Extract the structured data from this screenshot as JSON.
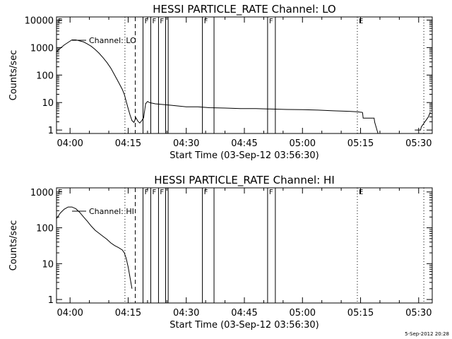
{
  "chart_data": [
    {
      "type": "line",
      "title": "HESSI PARTICLE_RATE Channel: LO",
      "ylabel": "Counts/sec",
      "xlabel": "Start Time (03-Sep-12 03:56:30)",
      "x_ticks": [
        "04:00",
        "04:15",
        "04:30",
        "04:45",
        "05:00",
        "05:15",
        "05:30"
      ],
      "y_ticks": [
        "1",
        "10",
        "100",
        "1000",
        "10000"
      ],
      "y_scale": "log",
      "xlim": [
        "03:56:30",
        "05:33:30"
      ],
      "ylim": [
        0.75,
        13000
      ],
      "legend": {
        "label": "Channel: LO",
        "placement": "top-left"
      },
      "series": [
        {
          "name": "Channel: LO",
          "segments": [
            {
              "x": [
                "03:56:30",
                "03:57:30",
                "03:58:30",
                "03:59:30",
                "04:00:30",
                "04:01:30",
                "04:02:30",
                "04:03:30",
                "04:04:30",
                "04:05:30",
                "04:06:30",
                "04:07:30",
                "04:08:30",
                "04:09:30",
                "04:10:30",
                "04:11:30",
                "04:12:30",
                "04:13:30",
                "04:14:00",
                "04:14:30",
                "04:15:00",
                "04:15:30",
                "04:16:00",
                "04:16:30",
                "04:17:00",
                "04:17:30",
                "04:18:00",
                "04:18:30",
                "04:19:00",
                "04:19:30",
                "04:20:00",
                "04:20:30"
              ],
              "y": [
                700,
                950,
                1250,
                1550,
                1900,
                1900,
                1750,
                1600,
                1350,
                1100,
                850,
                620,
                430,
                290,
                180,
                100,
                55,
                30,
                20,
                11,
                6,
                3.5,
                2.2,
                1.9,
                2.8,
                2.1,
                1.8,
                2.2,
                2.8,
                9,
                11,
                10
              ]
            },
            {
              "x": [
                "04:20:30",
                "04:22:00",
                "04:24:00",
                "04:26:00",
                "04:28:00",
                "04:30:00",
                "04:33:00",
                "04:36:00",
                "04:40:00",
                "04:44:00",
                "04:48:00",
                "04:52:00",
                "04:56:00",
                "05:00:00",
                "05:04:00",
                "05:08:00",
                "05:12:00",
                "05:14:00",
                "05:15:30"
              ],
              "y": [
                10,
                9,
                8.5,
                8,
                7.5,
                7,
                7,
                6.5,
                6.3,
                6,
                6,
                5.8,
                5.6,
                5.5,
                5.3,
                5,
                4.8,
                4.6,
                4.4
              ]
            },
            {
              "x": [
                "05:15:30",
                "05:15:40",
                "05:18:30",
                "05:18:40",
                "05:19:30"
              ],
              "y": [
                4.4,
                2.7,
                2.7,
                1.9,
                0.6
              ]
            },
            {
              "x": [
                "05:29:00",
                "05:30:30",
                "05:30:40",
                "05:32:30",
                "05:33:00"
              ],
              "y": [
                1,
                1,
                1.3,
                3,
                4.5
              ]
            }
          ]
        }
      ],
      "flags": [
        {
          "label": "E",
          "x": "03:56:30",
          "style": "dotted"
        },
        {
          "label": "",
          "x": "04:14:10",
          "style": "dotted"
        },
        {
          "label": "",
          "x": "04:16:50",
          "style": "dashed"
        },
        {
          "label": "F",
          "x": "04:18:50",
          "style": "solid"
        },
        {
          "label": "F",
          "x": "04:20:50",
          "style": "solid"
        },
        {
          "label": "F",
          "x": "04:22:50",
          "style": "solid"
        },
        {
          "label": "",
          "x": "04:24:40",
          "style": "solid"
        },
        {
          "label": "",
          "x": "04:25:20",
          "style": "solid"
        },
        {
          "label": "F",
          "x": "04:34:10",
          "style": "solid"
        },
        {
          "label": "",
          "x": "04:37:10",
          "style": "solid"
        },
        {
          "label": "F",
          "x": "04:51:00",
          "style": "solid"
        },
        {
          "label": "",
          "x": "04:53:00",
          "style": "solid"
        },
        {
          "label": "E",
          "x": "05:14:10",
          "style": "dotted"
        },
        {
          "label": "",
          "x": "05:31:20",
          "style": "dotted"
        }
      ]
    },
    {
      "type": "line",
      "title": "HESSI PARTICLE_RATE Channel: HI",
      "ylabel": "Counts/sec",
      "xlabel": "Start Time (03-Sep-12 03:56:30)",
      "x_ticks": [
        "04:00",
        "04:15",
        "04:30",
        "04:45",
        "05:00",
        "05:15",
        "05:30"
      ],
      "y_ticks": [
        "1",
        "10",
        "100",
        "1000"
      ],
      "y_scale": "log",
      "xlim": [
        "03:56:30",
        "05:33:30"
      ],
      "ylim": [
        0.8,
        1300
      ],
      "legend": {
        "label": "Channel: HI",
        "placement": "top-left"
      },
      "series": [
        {
          "name": "Channel: HI",
          "segments": [
            {
              "x": [
                "03:56:30",
                "03:57:30",
                "03:58:30",
                "03:59:30",
                "04:00:30",
                "04:01:30",
                "04:02:30",
                "04:03:30",
                "04:04:30",
                "04:05:30",
                "04:06:30",
                "04:07:30",
                "04:08:30",
                "04:09:30",
                "04:10:30",
                "04:11:30",
                "04:12:30",
                "04:13:30",
                "04:14:00",
                "04:14:30",
                "04:15:00",
                "04:15:30",
                "04:16:00"
              ],
              "y": [
                180,
                260,
                330,
                380,
                380,
                340,
                270,
                200,
                150,
                110,
                85,
                70,
                58,
                48,
                38,
                32,
                28,
                24,
                20,
                14,
                8,
                4,
                2
              ]
            }
          ]
        }
      ],
      "flags": [
        {
          "label": "E",
          "x": "03:56:30",
          "style": "dotted"
        },
        {
          "label": "",
          "x": "04:14:10",
          "style": "dotted"
        },
        {
          "label": "",
          "x": "04:16:50",
          "style": "dashed"
        },
        {
          "label": "F",
          "x": "04:18:50",
          "style": "solid"
        },
        {
          "label": "F",
          "x": "04:20:50",
          "style": "solid"
        },
        {
          "label": "F",
          "x": "04:22:50",
          "style": "solid"
        },
        {
          "label": "",
          "x": "04:24:40",
          "style": "solid"
        },
        {
          "label": "",
          "x": "04:25:20",
          "style": "solid"
        },
        {
          "label": "F",
          "x": "04:34:10",
          "style": "solid"
        },
        {
          "label": "",
          "x": "04:37:10",
          "style": "solid"
        },
        {
          "label": "F",
          "x": "04:51:00",
          "style": "solid"
        },
        {
          "label": "",
          "x": "04:53:00",
          "style": "solid"
        },
        {
          "label": "E",
          "x": "05:14:10",
          "style": "dotted"
        },
        {
          "label": "",
          "x": "05:31:20",
          "style": "dotted"
        }
      ]
    }
  ],
  "footer": {
    "stamp": "5-Sep-2012 20:28"
  }
}
